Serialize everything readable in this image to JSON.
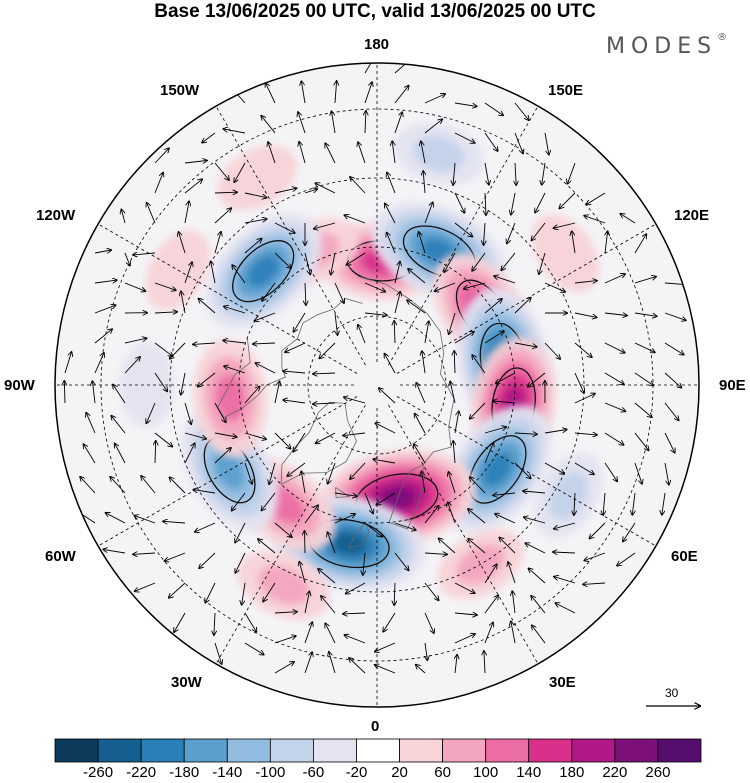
{
  "title": "Base 13/06/2025 00 UTC, valid 13/06/2025 00 UTC",
  "brand": "MODES",
  "brand_mark": "®",
  "longitude_labels": {
    "top": "180",
    "bottom": "0",
    "left": "90W",
    "right": "90E",
    "upper_left_1": "150W",
    "upper_left_2": "120W",
    "upper_right_1": "150E",
    "upper_right_2": "120E",
    "lower_left_1": "60W",
    "lower_left_2": "30W",
    "lower_right_1": "60E",
    "lower_right_2": "30E"
  },
  "vector_scale": "30",
  "legend": {
    "ticks": [
      "-260",
      "-220",
      "-180",
      "-140",
      "-100",
      "-60",
      "-20",
      "20",
      "60",
      "100",
      "140",
      "180",
      "220",
      "260"
    ],
    "colors": [
      "#0d3b5c",
      "#145f8f",
      "#2b7fb8",
      "#5a9fce",
      "#93bde0",
      "#c3d3ea",
      "#e4e4f1",
      "#ffffff",
      "#f8d3d8",
      "#f4a6bf",
      "#eb6da3",
      "#d9318a",
      "#b01885",
      "#7d0f7a",
      "#560e6e"
    ]
  },
  "anomaly_cells": [
    {
      "lat": 63,
      "lon": 178,
      "value": 150
    },
    {
      "lat": 58,
      "lon": 205,
      "value": 60
    },
    {
      "lat": 58,
      "lon": 155,
      "value": -200
    },
    {
      "lat": 55,
      "lon": 225,
      "value": -190
    },
    {
      "lat": 62,
      "lon": 125,
      "value": 160
    },
    {
      "lat": 62,
      "lon": 100,
      "value": -220
    },
    {
      "lat": 60,
      "lon": 82,
      "value": 180
    },
    {
      "lat": 58,
      "lon": 55,
      "value": -200
    },
    {
      "lat": 65,
      "lon": 10,
      "value": 240
    },
    {
      "lat": 55,
      "lon": -10,
      "value": -230
    },
    {
      "lat": 57,
      "lon": -38,
      "value": 130
    },
    {
      "lat": 53,
      "lon": -60,
      "value": -170
    },
    {
      "lat": 58,
      "lon": -85,
      "value": 130
    },
    {
      "lat": 45,
      "lon": 30,
      "value": 60
    },
    {
      "lat": 42,
      "lon": -25,
      "value": 70
    },
    {
      "lat": 40,
      "lon": 125,
      "value": 40
    },
    {
      "lat": 40,
      "lon": -120,
      "value": 40
    },
    {
      "lat": 42,
      "lon": 60,
      "value": -60
    },
    {
      "lat": 40,
      "lon": -90,
      "value": -40
    },
    {
      "lat": 38,
      "lon": 165,
      "value": -60
    },
    {
      "lat": 38,
      "lon": -150,
      "value": 40
    }
  ]
}
